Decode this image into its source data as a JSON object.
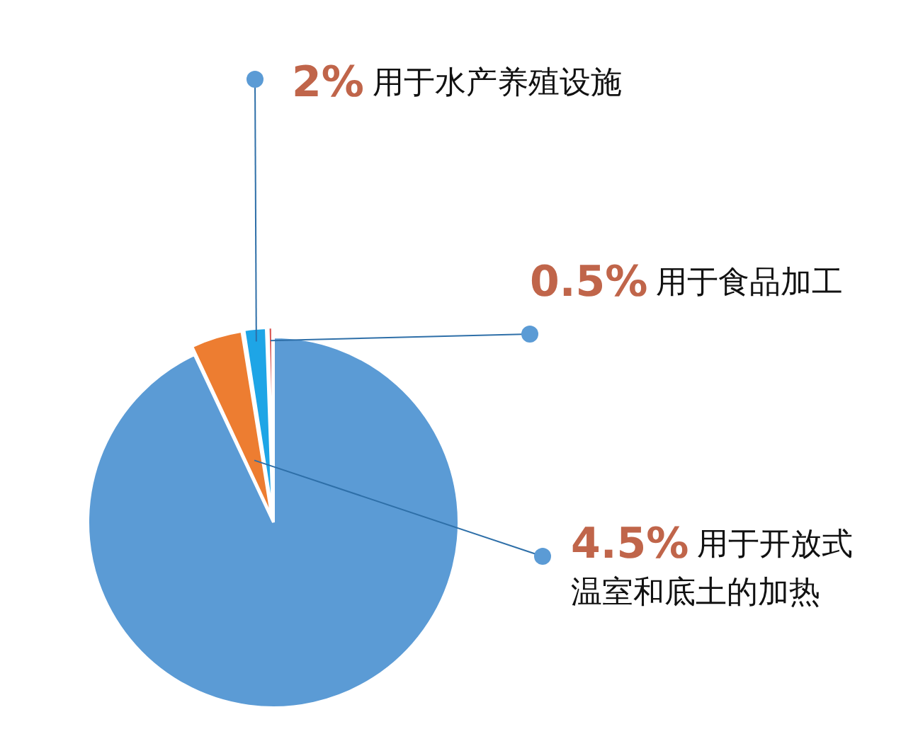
{
  "chart_data": {
    "type": "pie",
    "categories": [
      null,
      "用于开放式温室和底土的加热",
      "用于水产养殖设施",
      "用于食品加工"
    ],
    "values": [
      93,
      4.5,
      2,
      0.5
    ],
    "colors": [
      "#5b9bd5",
      "#ed7d31",
      "#1ea5e6",
      "#d9534f"
    ],
    "value_labels": [
      null,
      "4.5%",
      "2%",
      "0.5%"
    ],
    "legend": false
  }
}
